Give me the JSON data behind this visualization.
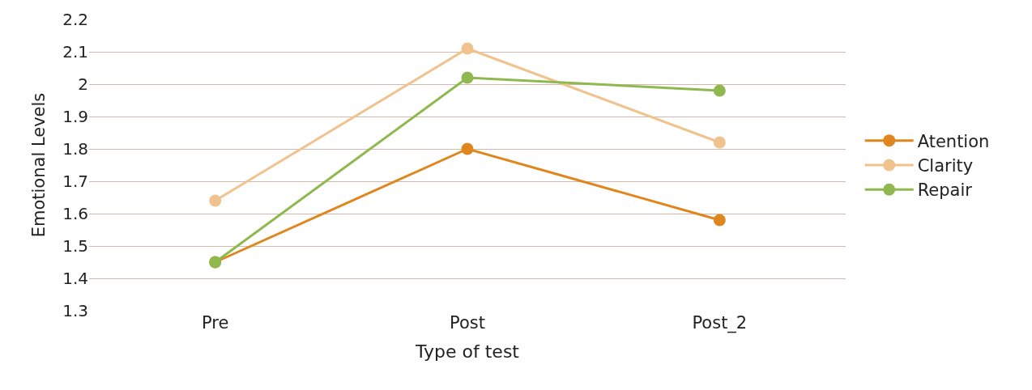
{
  "chart_data": {
    "type": "line",
    "xlabel": "Type of test",
    "ylabel": "Emotional Levels",
    "categories": [
      "Pre",
      "Post",
      "Post_2"
    ],
    "series": [
      {
        "name": "Atention",
        "color": "#e0861e",
        "values": [
          1.45,
          1.8,
          1.58
        ]
      },
      {
        "name": "Clarity",
        "color": "#f0c28e",
        "values": [
          1.64,
          2.11,
          1.82
        ]
      },
      {
        "name": "Repair",
        "color": "#8fb94f",
        "values": [
          1.45,
          2.02,
          1.98
        ]
      }
    ],
    "ylim": [
      1.3,
      2.2
    ],
    "yticks": [
      1.3,
      1.4,
      1.5,
      1.6,
      1.7,
      1.8,
      1.9,
      2,
      2.1,
      2.2
    ],
    "grid": "y",
    "legend": "right",
    "marker": "circle",
    "line_style": "solid"
  }
}
